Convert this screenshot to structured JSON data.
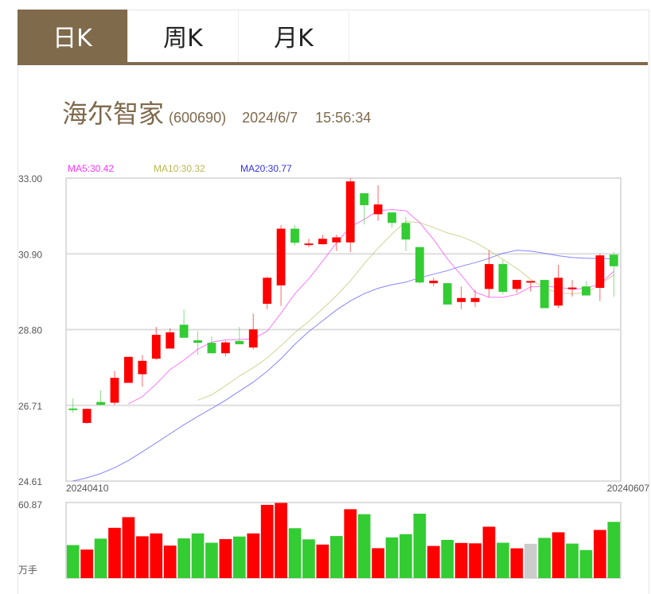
{
  "tabs": [
    {
      "label": "日K",
      "active": true
    },
    {
      "label": "周K",
      "active": false
    },
    {
      "label": "月K",
      "active": false
    }
  ],
  "stock": {
    "name": "海尔智家",
    "code": "(600690)",
    "date": "2024/6/7",
    "time": "15:56:34"
  },
  "legend": {
    "ma5": "MA5:30.42",
    "ma10": "MA10:30.32",
    "ma20": "MA20:30.77"
  },
  "colors": {
    "accent": "#7f6a4c",
    "up": "#ff0000",
    "down": "#33cc33",
    "flat": "#cccccc",
    "ma5": "#ff55ff",
    "ma10": "#c8c87a",
    "ma20": "#6666ff",
    "grid": "#dddddd"
  },
  "axis": {
    "y_ticks": [
      "33.00",
      "30.90",
      "28.80",
      "26.71",
      "24.61"
    ],
    "x_start": "20240410",
    "x_end": "20240607",
    "volume_max": "60.87",
    "volume_unit": "万手"
  },
  "chart_data": {
    "type": "candlestick",
    "title": "海尔智家 (600690) 日K",
    "xlabel": "",
    "ylabel": "",
    "ylim": [
      24.61,
      33.0
    ],
    "y_ticks": [
      33.0,
      30.9,
      28.8,
      26.71,
      24.61
    ],
    "x_range": [
      "20240410",
      "20240607"
    ],
    "grid": true,
    "legend": [
      "MA5:30.42",
      "MA10:30.32",
      "MA20:30.77"
    ],
    "candles": [
      {
        "o": 26.62,
        "h": 26.9,
        "l": 26.5,
        "c": 26.6
      },
      {
        "o": 26.22,
        "h": 26.62,
        "l": 26.2,
        "c": 26.61
      },
      {
        "o": 26.8,
        "h": 27.12,
        "l": 26.7,
        "c": 26.72
      },
      {
        "o": 26.78,
        "h": 27.66,
        "l": 26.72,
        "c": 27.47
      },
      {
        "o": 27.33,
        "h": 27.93,
        "l": 27.33,
        "c": 28.05
      },
      {
        "o": 27.57,
        "h": 28.1,
        "l": 27.22,
        "c": 27.94
      },
      {
        "o": 28.0,
        "h": 28.88,
        "l": 27.96,
        "c": 28.66
      },
      {
        "o": 28.28,
        "h": 28.84,
        "l": 28.28,
        "c": 28.73
      },
      {
        "o": 28.94,
        "h": 29.36,
        "l": 28.62,
        "c": 28.58
      },
      {
        "o": 28.51,
        "h": 28.76,
        "l": 28.1,
        "c": 28.44
      },
      {
        "o": 28.44,
        "h": 28.62,
        "l": 28.2,
        "c": 28.15
      },
      {
        "o": 28.15,
        "h": 28.5,
        "l": 28.06,
        "c": 28.45
      },
      {
        "o": 28.49,
        "h": 28.88,
        "l": 28.4,
        "c": 28.4
      },
      {
        "o": 28.31,
        "h": 29.25,
        "l": 28.25,
        "c": 28.81
      },
      {
        "o": 29.52,
        "h": 30.27,
        "l": 29.37,
        "c": 30.24
      },
      {
        "o": 30.03,
        "h": 31.7,
        "l": 29.46,
        "c": 31.6
      },
      {
        "o": 31.6,
        "h": 31.7,
        "l": 31.13,
        "c": 31.21
      },
      {
        "o": 31.19,
        "h": 31.32,
        "l": 31.09,
        "c": 31.19
      },
      {
        "o": 31.17,
        "h": 31.43,
        "l": 31.16,
        "c": 31.32
      },
      {
        "o": 31.22,
        "h": 31.43,
        "l": 30.98,
        "c": 31.36
      },
      {
        "o": 31.22,
        "h": 33.0,
        "l": 30.95,
        "c": 32.91
      },
      {
        "o": 32.58,
        "h": 32.58,
        "l": 31.72,
        "c": 32.25
      },
      {
        "o": 32.0,
        "h": 32.8,
        "l": 31.82,
        "c": 32.27
      },
      {
        "o": 32.05,
        "h": 32.05,
        "l": 31.63,
        "c": 31.76
      },
      {
        "o": 31.76,
        "h": 31.93,
        "l": 30.98,
        "c": 31.3
      },
      {
        "o": 31.09,
        "h": 31.09,
        "l": 30.07,
        "c": 30.11
      },
      {
        "o": 30.09,
        "h": 30.24,
        "l": 30.0,
        "c": 30.16
      },
      {
        "o": 30.09,
        "h": 30.09,
        "l": 29.5,
        "c": 29.5
      },
      {
        "o": 29.57,
        "h": 30.0,
        "l": 29.37,
        "c": 29.68
      },
      {
        "o": 29.57,
        "h": 29.91,
        "l": 29.43,
        "c": 29.68
      },
      {
        "o": 29.93,
        "h": 31.0,
        "l": 29.71,
        "c": 30.62
      },
      {
        "o": 30.62,
        "h": 30.73,
        "l": 29.78,
        "c": 29.85
      },
      {
        "o": 29.93,
        "h": 30.18,
        "l": 29.82,
        "c": 30.18
      },
      {
        "o": 30.15,
        "h": 30.15,
        "l": 29.86,
        "c": 30.15
      },
      {
        "o": 30.18,
        "h": 30.18,
        "l": 29.4,
        "c": 29.4
      },
      {
        "o": 29.47,
        "h": 30.6,
        "l": 29.4,
        "c": 30.24
      },
      {
        "o": 29.97,
        "h": 30.18,
        "l": 29.72,
        "c": 29.97
      },
      {
        "o": 30.0,
        "h": 30.15,
        "l": 29.82,
        "c": 29.75
      },
      {
        "o": 29.96,
        "h": 30.9,
        "l": 29.6,
        "c": 30.86
      },
      {
        "o": 30.88,
        "h": 30.95,
        "l": 29.71,
        "c": 30.56
      }
    ],
    "volume": {
      "unit": "万手",
      "max": 60.87,
      "values": [
        26.6,
        23.0,
        31.8,
        40.5,
        49.1,
        33.7,
        36.0,
        26.2,
        32.0,
        36.0,
        28.5,
        31.4,
        33.5,
        36.0,
        59.0,
        60.6,
        40.2,
        31.2,
        27.0,
        33.9,
        55.5,
        51.5,
        24.1,
        32.8,
        35.4,
        51.9,
        25.9,
        30.8,
        28.3,
        28.0,
        41.4,
        28.5,
        24.0,
        27.6,
        32.4,
        36.9,
        27.8,
        22.6,
        38.8,
        45.3
      ],
      "colors": [
        "down",
        "up",
        "down",
        "up",
        "up",
        "up",
        "up",
        "up",
        "down",
        "down",
        "down",
        "up",
        "down",
        "up",
        "up",
        "up",
        "down",
        "down",
        "up",
        "down",
        "up",
        "down",
        "up",
        "down",
        "down",
        "down",
        "up",
        "down",
        "up",
        "up",
        "up",
        "down",
        "up",
        "flat",
        "down",
        "up",
        "down",
        "down",
        "up",
        "down"
      ]
    },
    "ma_series": {
      "ma5": [
        null,
        null,
        null,
        null,
        26.75,
        26.95,
        27.3,
        27.7,
        27.96,
        28.26,
        28.46,
        28.52,
        28.53,
        28.55,
        28.76,
        29.26,
        29.8,
        30.21,
        30.7,
        31.21,
        31.65,
        31.86,
        32.1,
        32.13,
        32.1,
        31.77,
        31.3,
        30.76,
        30.31,
        29.84,
        29.7,
        29.7,
        29.78,
        29.99,
        30.0,
        29.98,
        29.92,
        29.95,
        30.07,
        30.42
      ],
      "ma10": [
        null,
        null,
        null,
        null,
        null,
        null,
        null,
        null,
        null,
        26.85,
        27.0,
        27.25,
        27.52,
        27.75,
        28.02,
        28.36,
        28.72,
        29.03,
        29.38,
        29.75,
        30.15,
        30.63,
        31.06,
        31.45,
        31.8,
        31.77,
        31.63,
        31.48,
        31.38,
        31.22,
        31.0,
        30.75,
        30.5,
        30.2,
        29.95,
        29.82,
        29.8,
        29.82,
        30.05,
        30.32
      ],
      "ma20": [
        24.61,
        24.7,
        24.82,
        24.98,
        25.18,
        25.42,
        25.67,
        25.92,
        26.17,
        26.4,
        26.62,
        26.85,
        27.1,
        27.35,
        27.65,
        28.0,
        28.4,
        28.75,
        29.05,
        29.35,
        29.6,
        29.8,
        29.95,
        30.05,
        30.12,
        30.24,
        30.34,
        30.44,
        30.56,
        30.66,
        30.78,
        30.92,
        31.0,
        30.98,
        30.92,
        30.85,
        30.8,
        30.78,
        30.77,
        30.77
      ]
    }
  }
}
